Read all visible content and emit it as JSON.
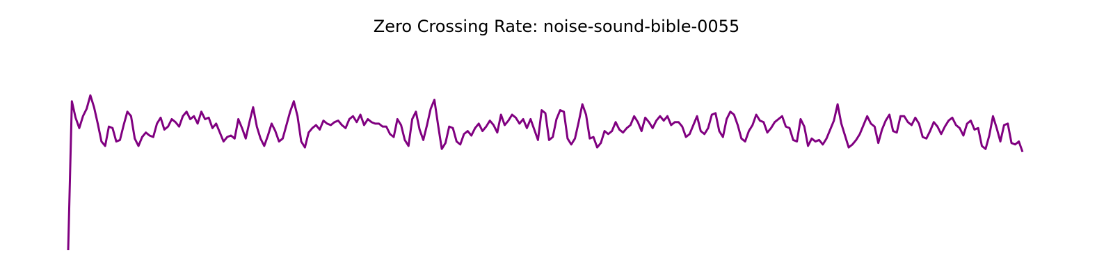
{
  "chart_data": {
    "type": "line",
    "title": "Zero Crossing Rate: noise-sound-bible-0055",
    "xlabel": "",
    "ylabel": "",
    "axes_visible": false,
    "grid": false,
    "legend": "none",
    "line_color": "#800080",
    "ylim": [
      0,
      0.28
    ],
    "series": [
      {
        "values": [
          0.0,
          0.2,
          0.178,
          0.164,
          0.18,
          0.19,
          0.208,
          0.192,
          0.17,
          0.146,
          0.14,
          0.166,
          0.164,
          0.146,
          0.148,
          0.168,
          0.186,
          0.18,
          0.15,
          0.14,
          0.152,
          0.158,
          0.154,
          0.152,
          0.17,
          0.178,
          0.162,
          0.166,
          0.176,
          0.172,
          0.166,
          0.18,
          0.186,
          0.176,
          0.18,
          0.17,
          0.186,
          0.176,
          0.178,
          0.164,
          0.17,
          0.158,
          0.146,
          0.152,
          0.154,
          0.15,
          0.176,
          0.164,
          0.15,
          0.172,
          0.192,
          0.166,
          0.15,
          0.14,
          0.154,
          0.17,
          0.16,
          0.146,
          0.15,
          0.168,
          0.186,
          0.2,
          0.18,
          0.146,
          0.138,
          0.158,
          0.164,
          0.168,
          0.162,
          0.174,
          0.17,
          0.168,
          0.172,
          0.174,
          0.168,
          0.164,
          0.176,
          0.18,
          0.172,
          0.182,
          0.168,
          0.176,
          0.172,
          0.17,
          0.17,
          0.166,
          0.166,
          0.156,
          0.152,
          0.176,
          0.168,
          0.148,
          0.14,
          0.176,
          0.186,
          0.162,
          0.148,
          0.168,
          0.19,
          0.202,
          0.168,
          0.136,
          0.144,
          0.166,
          0.164,
          0.146,
          0.142,
          0.156,
          0.16,
          0.154,
          0.164,
          0.17,
          0.16,
          0.166,
          0.174,
          0.168,
          0.158,
          0.182,
          0.168,
          0.174,
          0.182,
          0.178,
          0.17,
          0.176,
          0.164,
          0.176,
          0.162,
          0.148,
          0.188,
          0.184,
          0.148,
          0.152,
          0.176,
          0.188,
          0.186,
          0.15,
          0.142,
          0.15,
          0.172,
          0.196,
          0.182,
          0.15,
          0.152,
          0.138,
          0.144,
          0.16,
          0.156,
          0.16,
          0.172,
          0.162,
          0.158,
          0.164,
          0.168,
          0.18,
          0.172,
          0.16,
          0.178,
          0.172,
          0.164,
          0.174,
          0.18,
          0.174,
          0.18,
          0.168,
          0.172,
          0.172,
          0.166,
          0.152,
          0.156,
          0.168,
          0.18,
          0.16,
          0.156,
          0.164,
          0.182,
          0.184,
          0.16,
          0.152,
          0.176,
          0.186,
          0.182,
          0.168,
          0.15,
          0.146,
          0.16,
          0.168,
          0.182,
          0.174,
          0.172,
          0.158,
          0.164,
          0.172,
          0.176,
          0.18,
          0.166,
          0.164,
          0.148,
          0.146,
          0.176,
          0.166,
          0.14,
          0.15,
          0.146,
          0.148,
          0.142,
          0.15,
          0.162,
          0.174,
          0.196,
          0.17,
          0.154,
          0.138,
          0.142,
          0.148,
          0.156,
          0.168,
          0.18,
          0.17,
          0.166,
          0.144,
          0.162,
          0.174,
          0.182,
          0.16,
          0.158,
          0.18,
          0.18,
          0.172,
          0.168,
          0.178,
          0.17,
          0.152,
          0.15,
          0.16,
          0.172,
          0.166,
          0.156,
          0.166,
          0.174,
          0.178,
          0.168,
          0.164,
          0.154,
          0.17,
          0.174,
          0.162,
          0.164,
          0.14,
          0.136,
          0.154,
          0.18,
          0.164,
          0.146,
          0.168,
          0.17,
          0.144,
          0.142,
          0.146,
          0.132
        ]
      }
    ]
  }
}
